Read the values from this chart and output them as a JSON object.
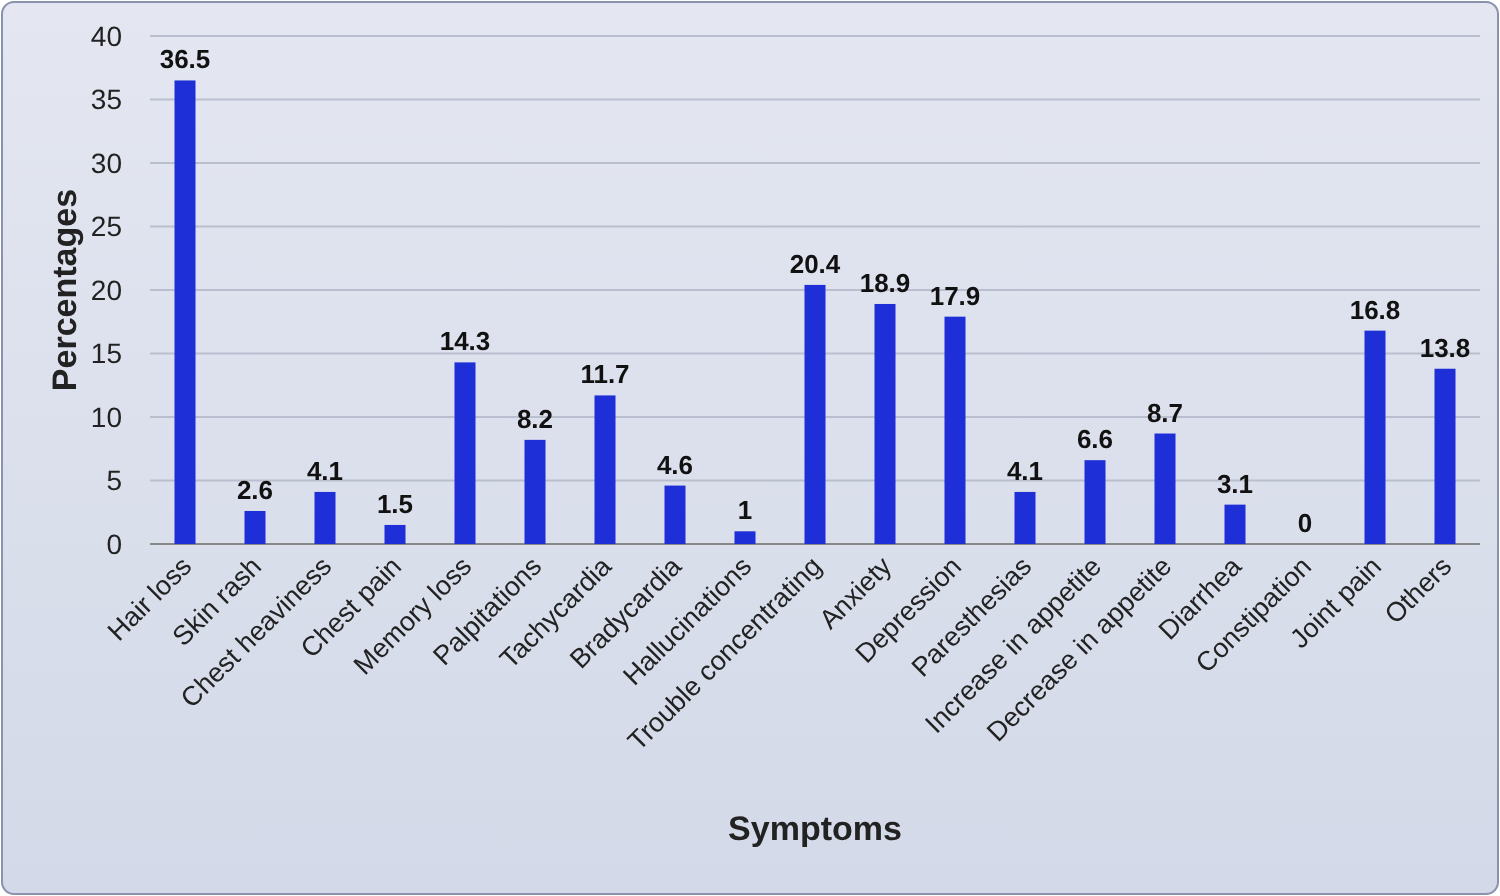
{
  "chart_data": {
    "type": "bar",
    "xlabel": "Symptoms",
    "ylabel": "Percentages",
    "categories": [
      "Hair loss",
      "Skin rash",
      "Chest heaviness",
      "Chest pain",
      "Memory loss",
      "Palpitations",
      "Tachycardia",
      "Bradycardia",
      "Hallucinations",
      "Trouble concentrating",
      "Anxiety",
      "Depression",
      "Paresthesias",
      "Increase in appetite",
      "Decrease in appetite",
      "Diarrhea",
      "Constipation",
      "Joint pain",
      "Others"
    ],
    "values": [
      36.5,
      2.6,
      4.1,
      1.5,
      14.3,
      8.2,
      11.7,
      4.6,
      1,
      20.4,
      18.9,
      17.9,
      4.1,
      6.6,
      8.7,
      3.1,
      0,
      16.8,
      13.8
    ],
    "color": "#1f2fd8",
    "ylim": [
      0,
      40
    ],
    "yticks": [
      0,
      5,
      10,
      15,
      20,
      25,
      30,
      35,
      40
    ],
    "grid": "y",
    "data_labels": true
  }
}
